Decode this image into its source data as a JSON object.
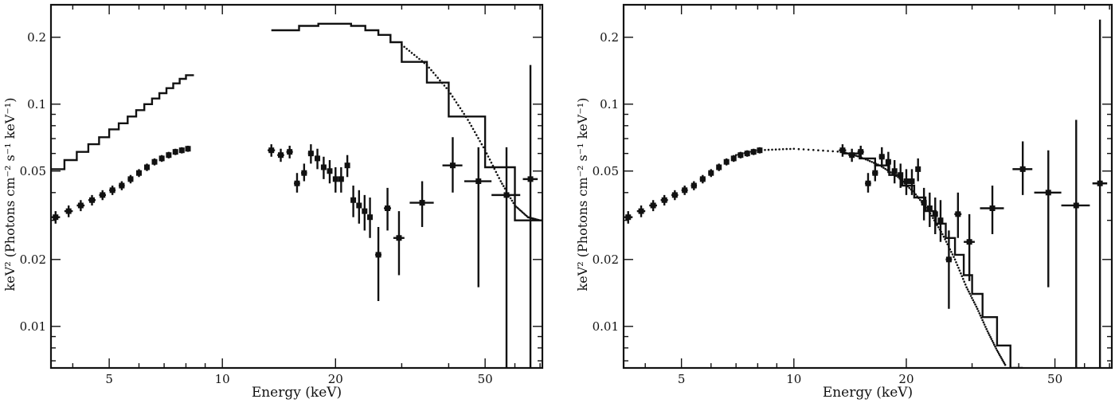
{
  "figure": {
    "xlabel": "Energy (keV)",
    "ylabel": "keV² (Photons cm⁻² s⁻¹ keV⁻¹)"
  },
  "chart_data": [
    {
      "type": "scatter",
      "panel": "left",
      "xscale": "log",
      "yscale": "log",
      "xlim": [
        3.5,
        71
      ],
      "ylim": [
        0.0065,
        0.28
      ],
      "xticks": [
        5,
        10,
        20,
        50
      ],
      "yticks": [
        0.01,
        0.02,
        0.05,
        0.1,
        0.2
      ],
      "xlabel": "Energy (keV)",
      "ylabel": "keV² (Photons cm⁻² s⁻¹ keV⁻¹)",
      "series": [
        {
          "kind": "model_step",
          "x_edges": [
            3.5,
            3.8,
            4.1,
            4.4,
            4.7,
            5.0,
            5.3,
            5.6,
            5.9,
            6.2,
            6.5,
            6.8,
            7.1,
            7.4,
            7.7,
            8.0,
            8.4
          ],
          "values": [
            0.051,
            0.056,
            0.061,
            0.066,
            0.071,
            0.077,
            0.082,
            0.088,
            0.094,
            0.1,
            0.106,
            0.112,
            0.118,
            0.124,
            0.13,
            0.135
          ]
        },
        {
          "kind": "data",
          "points": [
            {
              "x": 3.6,
              "y": 0.031,
              "xerr": 0.1,
              "ylo": 0.029,
              "yhi": 0.033
            },
            {
              "x": 3.9,
              "y": 0.033,
              "xerr": 0.1,
              "ylo": 0.031,
              "yhi": 0.035
            },
            {
              "x": 4.2,
              "y": 0.035,
              "xerr": 0.1,
              "ylo": 0.033,
              "yhi": 0.037
            },
            {
              "x": 4.5,
              "y": 0.037,
              "xerr": 0.1,
              "ylo": 0.035,
              "yhi": 0.039
            },
            {
              "x": 4.8,
              "y": 0.039,
              "xerr": 0.1,
              "ylo": 0.037,
              "yhi": 0.041
            },
            {
              "x": 5.1,
              "y": 0.041,
              "xerr": 0.1,
              "ylo": 0.039,
              "yhi": 0.043
            },
            {
              "x": 5.4,
              "y": 0.043,
              "xerr": 0.1,
              "ylo": 0.041,
              "yhi": 0.045
            },
            {
              "x": 5.7,
              "y": 0.046,
              "xerr": 0.1,
              "ylo": 0.044,
              "yhi": 0.048
            },
            {
              "x": 6.0,
              "y": 0.049,
              "xerr": 0.1,
              "ylo": 0.047,
              "yhi": 0.051
            },
            {
              "x": 6.3,
              "y": 0.052,
              "xerr": 0.1,
              "ylo": 0.05,
              "yhi": 0.054
            },
            {
              "x": 6.6,
              "y": 0.055,
              "xerr": 0.1,
              "ylo": 0.053,
              "yhi": 0.057
            },
            {
              "x": 6.9,
              "y": 0.057,
              "xerr": 0.1,
              "ylo": 0.055,
              "yhi": 0.059
            },
            {
              "x": 7.2,
              "y": 0.059,
              "xerr": 0.1,
              "ylo": 0.057,
              "yhi": 0.061
            },
            {
              "x": 7.5,
              "y": 0.061,
              "xerr": 0.1,
              "ylo": 0.059,
              "yhi": 0.063
            },
            {
              "x": 7.8,
              "y": 0.062,
              "xerr": 0.1,
              "ylo": 0.06,
              "yhi": 0.064
            },
            {
              "x": 8.1,
              "y": 0.063,
              "xerr": 0.1,
              "ylo": 0.061,
              "yhi": 0.065
            },
            {
              "x": 13.5,
              "y": 0.062,
              "xerr": 0.3,
              "ylo": 0.058,
              "yhi": 0.066
            },
            {
              "x": 14.3,
              "y": 0.059,
              "xerr": 0.3,
              "ylo": 0.055,
              "yhi": 0.063
            },
            {
              "x": 15.1,
              "y": 0.061,
              "xerr": 0.3,
              "ylo": 0.057,
              "yhi": 0.065
            },
            {
              "x": 15.8,
              "y": 0.044,
              "xerr": 0.3,
              "ylo": 0.04,
              "yhi": 0.049
            },
            {
              "x": 16.5,
              "y": 0.049,
              "xerr": 0.3,
              "ylo": 0.045,
              "yhi": 0.054
            },
            {
              "x": 17.2,
              "y": 0.06,
              "xerr": 0.3,
              "ylo": 0.054,
              "yhi": 0.066
            },
            {
              "x": 17.9,
              "y": 0.057,
              "xerr": 0.3,
              "ylo": 0.051,
              "yhi": 0.063
            },
            {
              "x": 18.6,
              "y": 0.052,
              "xerr": 0.3,
              "ylo": 0.046,
              "yhi": 0.058
            },
            {
              "x": 19.3,
              "y": 0.05,
              "xerr": 0.3,
              "ylo": 0.044,
              "yhi": 0.056
            },
            {
              "x": 20.0,
              "y": 0.046,
              "xerr": 0.3,
              "ylo": 0.04,
              "yhi": 0.052
            },
            {
              "x": 20.7,
              "y": 0.046,
              "xerr": 0.3,
              "ylo": 0.04,
              "yhi": 0.052
            },
            {
              "x": 21.5,
              "y": 0.053,
              "xerr": 0.3,
              "ylo": 0.047,
              "yhi": 0.059
            },
            {
              "x": 22.3,
              "y": 0.037,
              "xerr": 0.35,
              "ylo": 0.031,
              "yhi": 0.043
            },
            {
              "x": 23.1,
              "y": 0.035,
              "xerr": 0.35,
              "ylo": 0.029,
              "yhi": 0.041
            },
            {
              "x": 23.9,
              "y": 0.033,
              "xerr": 0.35,
              "ylo": 0.027,
              "yhi": 0.039
            },
            {
              "x": 24.7,
              "y": 0.031,
              "xerr": 0.35,
              "ylo": 0.025,
              "yhi": 0.038
            },
            {
              "x": 26.0,
              "y": 0.021,
              "xerr": 0.5,
              "ylo": 0.013,
              "yhi": 0.028
            },
            {
              "x": 27.5,
              "y": 0.034,
              "xerr": 0.6,
              "ylo": 0.027,
              "yhi": 0.042
            },
            {
              "x": 29.5,
              "y": 0.025,
              "xerr": 1.0,
              "ylo": 0.017,
              "yhi": 0.033
            },
            {
              "x": 34.0,
              "y": 0.036,
              "xerr": 2.5,
              "ylo": 0.028,
              "yhi": 0.045
            },
            {
              "x": 41.0,
              "y": 0.053,
              "xerr": 2.5,
              "ylo": 0.04,
              "yhi": 0.071
            },
            {
              "x": 48.0,
              "y": 0.045,
              "xerr": 4.0,
              "ylo": 0.015,
              "yhi": 0.064
            },
            {
              "x": 57.0,
              "y": 0.039,
              "xerr": 5.0,
              "ylo": 0.0065,
              "yhi": 0.064
            },
            {
              "x": 66.0,
              "y": 0.046,
              "xerr": 3.0,
              "ylo": 0.0065,
              "yhi": 0.15
            }
          ]
        },
        {
          "kind": "model_step",
          "x_edges": [
            13.5,
            16,
            18,
            20,
            22,
            24,
            26,
            28,
            30,
            35,
            40,
            50,
            60,
            71
          ],
          "values": [
            0.215,
            0.225,
            0.23,
            0.23,
            0.225,
            0.215,
            0.205,
            0.19,
            0.155,
            0.125,
            0.088,
            0.052,
            0.03
          ]
        },
        {
          "kind": "model_dotted",
          "x": [
            30,
            35,
            40,
            45,
            50,
            55,
            60,
            65,
            70
          ],
          "y": [
            0.185,
            0.15,
            0.115,
            0.085,
            0.062,
            0.045,
            0.035,
            0.031,
            0.03
          ]
        }
      ]
    },
    {
      "type": "scatter",
      "panel": "right",
      "xscale": "log",
      "yscale": "log",
      "xlim": [
        3.5,
        71
      ],
      "ylim": [
        0.0065,
        0.28
      ],
      "xticks": [
        5,
        10,
        20,
        50
      ],
      "yticks": [
        0.01,
        0.02,
        0.05,
        0.1,
        0.2
      ],
      "xlabel": "Energy (keV)",
      "ylabel": "keV² (Photons cm⁻² s⁻¹ keV⁻¹)",
      "series": [
        {
          "kind": "data",
          "points": [
            {
              "x": 3.6,
              "y": 0.031,
              "xerr": 0.1,
              "ylo": 0.029,
              "yhi": 0.033
            },
            {
              "x": 3.9,
              "y": 0.033,
              "xerr": 0.1,
              "ylo": 0.031,
              "yhi": 0.035
            },
            {
              "x": 4.2,
              "y": 0.035,
              "xerr": 0.1,
              "ylo": 0.033,
              "yhi": 0.037
            },
            {
              "x": 4.5,
              "y": 0.037,
              "xerr": 0.1,
              "ylo": 0.035,
              "yhi": 0.039
            },
            {
              "x": 4.8,
              "y": 0.039,
              "xerr": 0.1,
              "ylo": 0.037,
              "yhi": 0.041
            },
            {
              "x": 5.1,
              "y": 0.041,
              "xerr": 0.1,
              "ylo": 0.039,
              "yhi": 0.043
            },
            {
              "x": 5.4,
              "y": 0.043,
              "xerr": 0.1,
              "ylo": 0.041,
              "yhi": 0.045
            },
            {
              "x": 5.7,
              "y": 0.046,
              "xerr": 0.1,
              "ylo": 0.044,
              "yhi": 0.048
            },
            {
              "x": 6.0,
              "y": 0.049,
              "xerr": 0.1,
              "ylo": 0.047,
              "yhi": 0.051
            },
            {
              "x": 6.3,
              "y": 0.052,
              "xerr": 0.1,
              "ylo": 0.05,
              "yhi": 0.054
            },
            {
              "x": 6.6,
              "y": 0.055,
              "xerr": 0.1,
              "ylo": 0.053,
              "yhi": 0.057
            },
            {
              "x": 6.9,
              "y": 0.057,
              "xerr": 0.1,
              "ylo": 0.055,
              "yhi": 0.059
            },
            {
              "x": 7.2,
              "y": 0.059,
              "xerr": 0.1,
              "ylo": 0.057,
              "yhi": 0.061
            },
            {
              "x": 7.5,
              "y": 0.06,
              "xerr": 0.1,
              "ylo": 0.058,
              "yhi": 0.062
            },
            {
              "x": 7.8,
              "y": 0.061,
              "xerr": 0.1,
              "ylo": 0.059,
              "yhi": 0.063
            },
            {
              "x": 8.1,
              "y": 0.062,
              "xerr": 0.1,
              "ylo": 0.06,
              "yhi": 0.064
            },
            {
              "x": 13.5,
              "y": 0.062,
              "xerr": 0.3,
              "ylo": 0.058,
              "yhi": 0.066
            },
            {
              "x": 14.3,
              "y": 0.059,
              "xerr": 0.3,
              "ylo": 0.055,
              "yhi": 0.063
            },
            {
              "x": 15.1,
              "y": 0.061,
              "xerr": 0.3,
              "ylo": 0.057,
              "yhi": 0.065
            },
            {
              "x": 15.8,
              "y": 0.044,
              "xerr": 0.3,
              "ylo": 0.04,
              "yhi": 0.049
            },
            {
              "x": 16.5,
              "y": 0.049,
              "xerr": 0.3,
              "ylo": 0.045,
              "yhi": 0.054
            },
            {
              "x": 17.2,
              "y": 0.058,
              "xerr": 0.3,
              "ylo": 0.052,
              "yhi": 0.064
            },
            {
              "x": 17.9,
              "y": 0.055,
              "xerr": 0.3,
              "ylo": 0.049,
              "yhi": 0.061
            },
            {
              "x": 18.6,
              "y": 0.05,
              "xerr": 0.3,
              "ylo": 0.044,
              "yhi": 0.056
            },
            {
              "x": 19.3,
              "y": 0.048,
              "xerr": 0.3,
              "ylo": 0.042,
              "yhi": 0.054
            },
            {
              "x": 20.0,
              "y": 0.045,
              "xerr": 0.3,
              "ylo": 0.039,
              "yhi": 0.051
            },
            {
              "x": 20.7,
              "y": 0.045,
              "xerr": 0.3,
              "ylo": 0.039,
              "yhi": 0.051
            },
            {
              "x": 21.5,
              "y": 0.051,
              "xerr": 0.3,
              "ylo": 0.045,
              "yhi": 0.057
            },
            {
              "x": 22.3,
              "y": 0.036,
              "xerr": 0.35,
              "ylo": 0.03,
              "yhi": 0.042
            },
            {
              "x": 23.1,
              "y": 0.034,
              "xerr": 0.35,
              "ylo": 0.028,
              "yhi": 0.04
            },
            {
              "x": 23.9,
              "y": 0.032,
              "xerr": 0.35,
              "ylo": 0.026,
              "yhi": 0.038
            },
            {
              "x": 24.7,
              "y": 0.03,
              "xerr": 0.35,
              "ylo": 0.024,
              "yhi": 0.037
            },
            {
              "x": 26.0,
              "y": 0.02,
              "xerr": 0.5,
              "ylo": 0.012,
              "yhi": 0.027
            },
            {
              "x": 27.5,
              "y": 0.032,
              "xerr": 0.6,
              "ylo": 0.025,
              "yhi": 0.04
            },
            {
              "x": 29.5,
              "y": 0.024,
              "xerr": 1.0,
              "ylo": 0.016,
              "yhi": 0.032
            },
            {
              "x": 34.0,
              "y": 0.034,
              "xerr": 2.5,
              "ylo": 0.026,
              "yhi": 0.043
            },
            {
              "x": 41.0,
              "y": 0.051,
              "xerr": 2.5,
              "ylo": 0.039,
              "yhi": 0.068
            },
            {
              "x": 48.0,
              "y": 0.04,
              "xerr": 4.0,
              "ylo": 0.015,
              "yhi": 0.062
            },
            {
              "x": 57.0,
              "y": 0.035,
              "xerr": 5.0,
              "ylo": 0.0065,
              "yhi": 0.085
            },
            {
              "x": 66.0,
              "y": 0.044,
              "xerr": 3.0,
              "ylo": 0.0065,
              "yhi": 0.24
            }
          ]
        },
        {
          "kind": "model_step",
          "x_edges": [
            13.5,
            15,
            16.5,
            18,
            19.5,
            21,
            22.5,
            24,
            25.5,
            27,
            28.5,
            30,
            32,
            35,
            38,
            41
          ],
          "values": [
            0.06,
            0.057,
            0.053,
            0.048,
            0.043,
            0.038,
            0.033,
            0.029,
            0.025,
            0.021,
            0.017,
            0.014,
            0.011,
            0.0082,
            0.0065
          ]
        },
        {
          "kind": "model_dotted",
          "x": [
            7.0,
            8.0,
            10.0,
            13.5,
            15.0,
            17.0,
            19.0,
            21.0,
            23.0,
            25.0,
            27.0,
            29.0,
            31.0,
            33.0,
            35.0,
            37.0
          ],
          "y": [
            0.059,
            0.062,
            0.063,
            0.061,
            0.058,
            0.053,
            0.047,
            0.04,
            0.033,
            0.026,
            0.02,
            0.015,
            0.012,
            0.0095,
            0.0078,
            0.0066
          ]
        }
      ]
    }
  ]
}
